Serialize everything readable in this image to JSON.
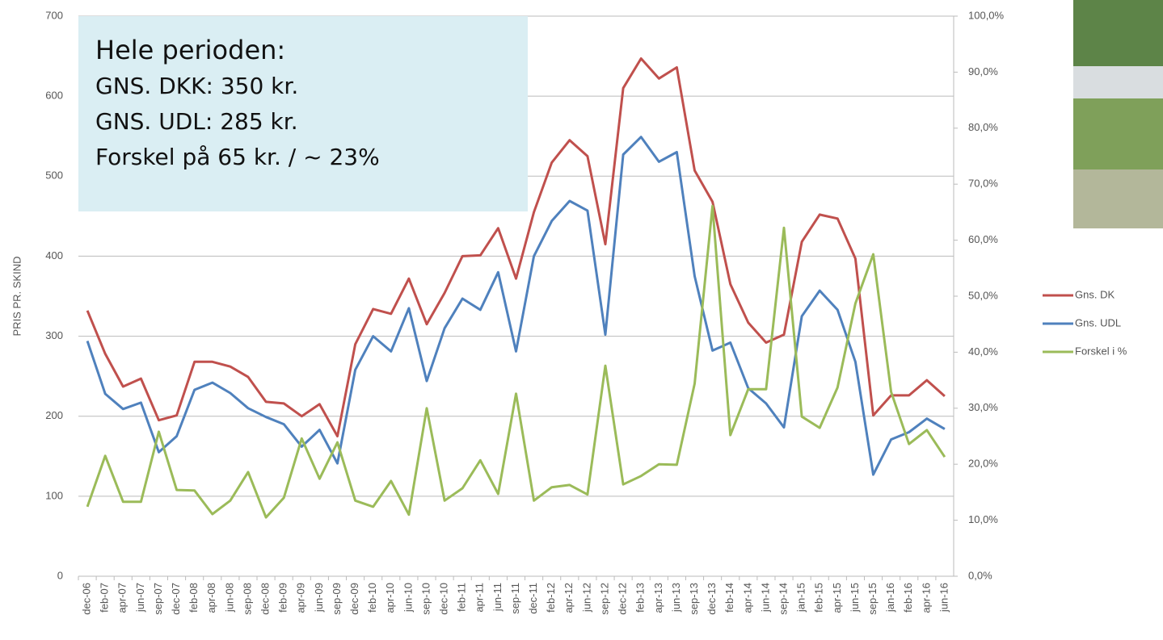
{
  "chart_data": {
    "type": "line",
    "y_label": "PRIS PR. SKIND",
    "annotations": [
      "Hele perioden:",
      "GNS. DKK: 350 kr.",
      "GNS. UDL: 285 kr.",
      "Forskel på 65 kr. / ~ 23%"
    ],
    "categories": [
      "dec-06",
      "feb-07",
      "apr-07",
      "jun-07",
      "sep-07",
      "dec-07",
      "feb-08",
      "apr-08",
      "jun-08",
      "sep-08",
      "dec-08",
      "feb-09",
      "apr-09",
      "jun-09",
      "sep-09",
      "dec-09",
      "feb-10",
      "apr-10",
      "jun-10",
      "sep-10",
      "dec-10",
      "feb-11",
      "apr-11",
      "jun-11",
      "sep-11",
      "dec-11",
      "feb-12",
      "apr-12",
      "jun-12",
      "sep-12",
      "dec-12",
      "feb-13",
      "apr-13",
      "jun-13",
      "sep-13",
      "dec-13",
      "feb-14",
      "apr-14",
      "jun-14",
      "sep-14",
      "jan-15",
      "feb-15",
      "apr-15",
      "jun-15",
      "sep-15",
      "jan-16",
      "feb-16",
      "apr-16",
      "jun-16"
    ],
    "series": [
      {
        "name": "Gns. DK",
        "color": "#c0504d",
        "values": [
          332,
          278,
          237,
          247,
          195,
          201,
          268,
          268,
          262,
          249,
          218,
          216,
          200,
          215,
          175,
          290,
          334,
          328,
          372,
          315,
          354,
          400,
          401,
          435,
          372,
          455,
          517,
          545,
          525,
          415,
          610,
          647,
          622,
          636,
          507,
          468,
          365,
          317,
          292,
          302,
          418,
          452,
          447,
          397,
          201,
          226,
          226,
          245,
          225
        ]
      },
      {
        "name": "Gns. UDL",
        "color": "#4f81bd",
        "values": [
          294,
          228,
          209,
          217,
          155,
          175,
          233,
          242,
          229,
          210,
          199,
          190,
          162,
          183,
          141,
          258,
          300,
          281,
          335,
          244,
          310,
          347,
          333,
          380,
          281,
          400,
          444,
          469,
          457,
          302,
          527,
          549,
          518,
          530,
          375,
          282,
          292,
          235,
          216,
          186,
          325,
          357,
          333,
          268,
          127,
          171,
          180,
          197,
          184
        ]
      },
      {
        "name": "Forskel i %",
        "color": "#9bbb59",
        "axis": "y2",
        "values": [
          12.4,
          21.5,
          13.3,
          13.3,
          25.8,
          15.4,
          15.3,
          11.1,
          13.5,
          18.6,
          10.5,
          14,
          24.6,
          17.4,
          23.9,
          13.5,
          12.4,
          17,
          11,
          30,
          13.5,
          15.7,
          20.7,
          14.7,
          32.6,
          13.5,
          15.9,
          16.3,
          14.6,
          37.6,
          16.4,
          17.9,
          20,
          19.9,
          34.4,
          66.1,
          25.2,
          33.4,
          33.4,
          62.2,
          28.5,
          26.5,
          33.7,
          48.7,
          57.5,
          32.9,
          23.6,
          26.1,
          21.3
        ]
      }
    ],
    "ylim": [
      0,
      700
    ],
    "yticks": [
      0,
      100,
      200,
      300,
      400,
      500,
      600,
      700
    ],
    "y2lim": [
      0,
      100
    ],
    "y2ticks": [
      {
        "value": 0,
        "label": "0,0%"
      },
      {
        "value": 10,
        "label": "10,0%"
      },
      {
        "value": 20,
        "label": "20,0%"
      },
      {
        "value": 30,
        "label": "30,0%"
      },
      {
        "value": 40,
        "label": "40,0%"
      },
      {
        "value": 50,
        "label": "50,0%"
      },
      {
        "value": 60,
        "label": "60,0%"
      },
      {
        "value": 70,
        "label": "70,0%"
      },
      {
        "value": 80,
        "label": "80,0%"
      },
      {
        "value": 90,
        "label": "90,0%"
      },
      {
        "value": 100,
        "label": "100,0%"
      }
    ],
    "grid": true,
    "legend": "right"
  }
}
